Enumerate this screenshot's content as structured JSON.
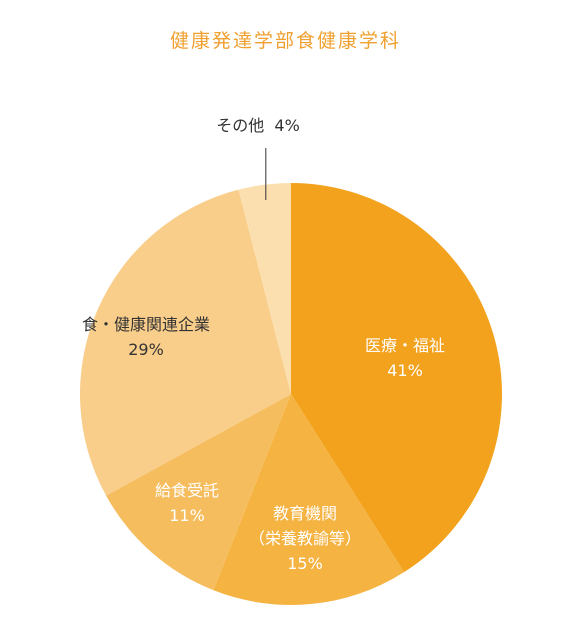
{
  "chart_data": {
    "type": "pie",
    "title": "健康発達学部食健康学科",
    "slices": [
      {
        "lines": [
          "医療・福祉"
        ],
        "value": 41,
        "value_label": "41%",
        "color": "#f3a21d",
        "label_color": "#ffffff"
      },
      {
        "lines": [
          "教育機関",
          "（栄養教諭等）"
        ],
        "value": 15,
        "value_label": "15%",
        "color": "#f5b342",
        "label_color": "#ffffff"
      },
      {
        "lines": [
          "給食受託"
        ],
        "value": 11,
        "value_label": "11%",
        "color": "#f6bd5e",
        "label_color": "#ffffff"
      },
      {
        "lines": [
          "食・健康関連企業"
        ],
        "value": 29,
        "value_label": "29%",
        "color": "#f9ce8b",
        "label_color": "#333333"
      },
      {
        "lines": [
          "その他"
        ],
        "value": 4,
        "value_label": "4%",
        "color": "#fbdfae",
        "label_color": "#333333"
      }
    ],
    "legend": "none"
  }
}
